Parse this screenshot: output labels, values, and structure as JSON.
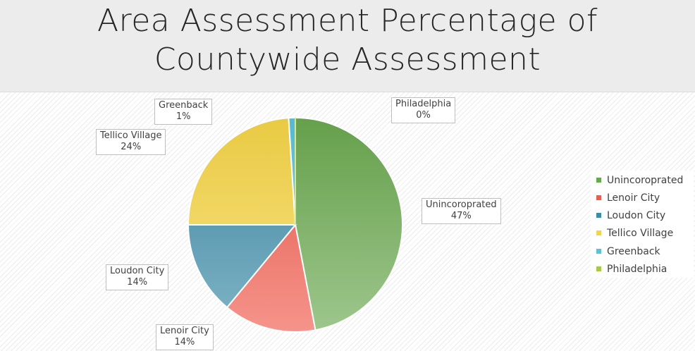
{
  "chart_data": {
    "type": "pie",
    "title": "Area Assessment Percentage of Countywide Assessment",
    "slices": [
      {
        "label": "Unincoroprated",
        "value": 47,
        "value_label": "47%",
        "color": "#6aa84f"
      },
      {
        "label": "Lenoir City",
        "value": 14,
        "value_label": "14%",
        "color": "#ef5b4c"
      },
      {
        "label": "Loudon City",
        "value": 14,
        "value_label": "14%",
        "color": "#3d8ba8"
      },
      {
        "label": "Tellico Village",
        "value": 24,
        "value_label": "24%",
        "color": "#f5d547"
      },
      {
        "label": "Greenback",
        "value": 1,
        "value_label": "1%",
        "color": "#5bc3d9"
      },
      {
        "label": "Philadelphia",
        "value": 0,
        "value_label": "0%",
        "color": "#a6c94a"
      }
    ],
    "legend_position": "right"
  }
}
